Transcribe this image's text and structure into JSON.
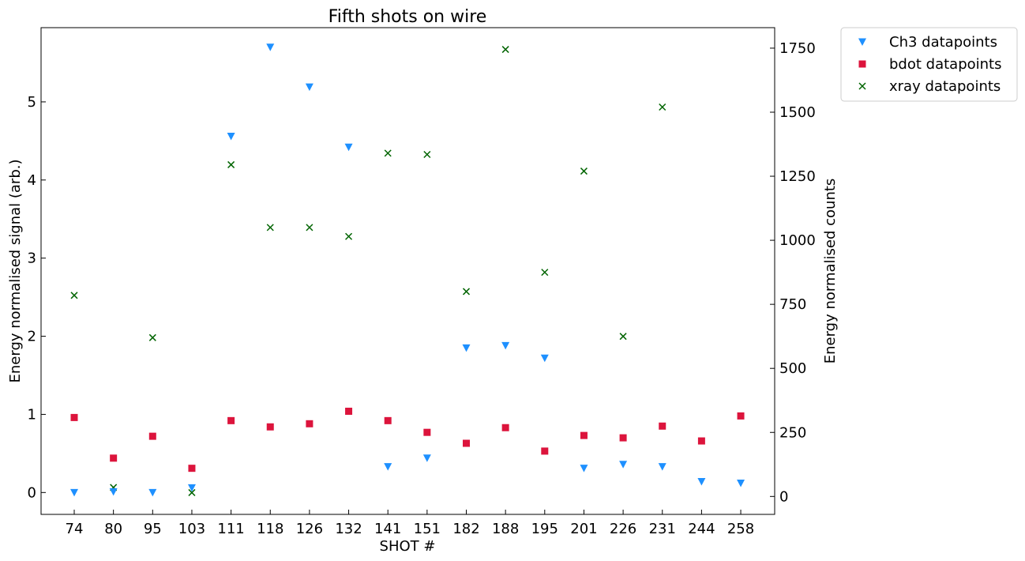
{
  "chart_data": {
    "type": "scatter",
    "title": "Fifth shots on wire",
    "xlabel": "SHOT #",
    "ylabel_left": "Energy normalised signal (arb.)",
    "ylabel_right": "Energy normalised counts",
    "categories": [
      "74",
      "80",
      "95",
      "103",
      "111",
      "118",
      "126",
      "132",
      "141",
      "151",
      "182",
      "188",
      "195",
      "201",
      "226",
      "231",
      "244",
      "258"
    ],
    "ylim_left": [
      -0.28,
      5.95
    ],
    "ylim_right": [
      -70,
      1830
    ],
    "yticks_left": [
      0,
      1,
      2,
      3,
      4,
      5
    ],
    "yticks_right": [
      0,
      250,
      500,
      750,
      1000,
      1250,
      1500,
      1750
    ],
    "legend_position": "outside-top-right",
    "grid": false,
    "series": [
      {
        "name": "Ch3 datapoints",
        "marker": "triangle-down",
        "color": "#1e90ff",
        "axis": "left",
        "values": [
          0.0,
          0.01,
          0.0,
          0.06,
          4.56,
          5.7,
          5.19,
          4.42,
          0.33,
          0.44,
          1.85,
          1.88,
          1.72,
          0.31,
          0.36,
          0.33,
          0.14,
          0.12
        ]
      },
      {
        "name": "bdot datapoints",
        "marker": "square",
        "color": "#dc143c",
        "axis": "left",
        "values": [
          0.96,
          0.44,
          0.72,
          0.31,
          0.92,
          0.84,
          0.88,
          1.04,
          0.92,
          0.77,
          0.63,
          0.83,
          0.53,
          0.73,
          0.7,
          0.85,
          0.66,
          0.98
        ]
      },
      {
        "name": "xray datapoints",
        "marker": "x",
        "color": "#006400",
        "axis": "right",
        "values": [
          785,
          35,
          620,
          15,
          1295,
          1050,
          1050,
          1015,
          1340,
          1335,
          800,
          1745,
          875,
          1270,
          625,
          1520,
          null,
          null
        ]
      }
    ]
  }
}
